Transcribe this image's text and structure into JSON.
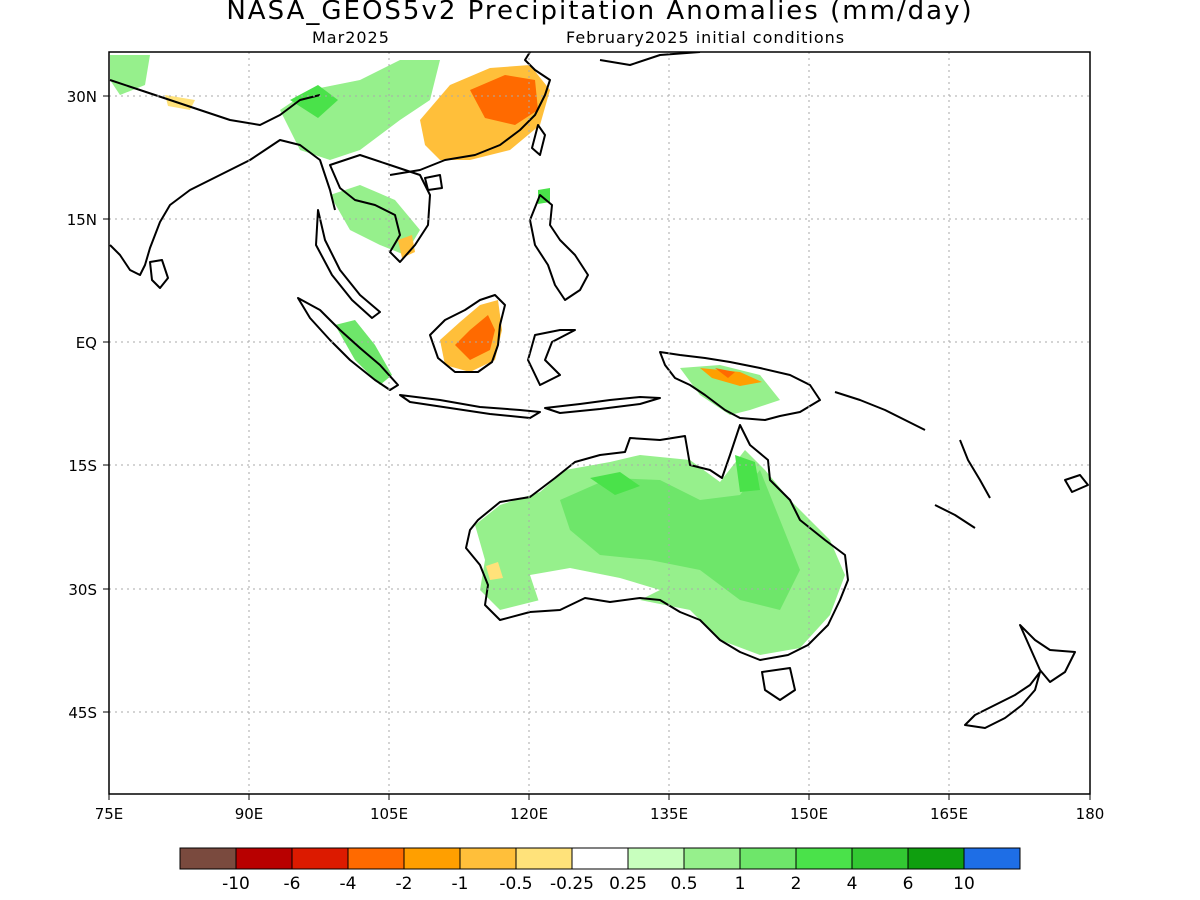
{
  "title": "NASA_GEOS5v2 Precipitation Anomalies (mm/day)",
  "subtitle_left": "Mar2025",
  "subtitle_right": "February2025 initial conditions",
  "lat_ticks": [
    "30N",
    "15N",
    "EQ",
    "15S",
    "30S",
    "45S"
  ],
  "lon_ticks": [
    "75E",
    "90E",
    "105E",
    "120E",
    "135E",
    "150E",
    "165E",
    "180"
  ],
  "colorbar": {
    "colors": [
      "#7a4a3e",
      "#b80000",
      "#dc1a00",
      "#ff6a00",
      "#ff9f00",
      "#ffbf3a",
      "#ffe27a",
      "#ffffff",
      "#c8ffbe",
      "#96f08c",
      "#6ee66a",
      "#4ae24a",
      "#32c832",
      "#0f9f0f",
      "#1e6ee6"
    ],
    "labels": [
      "-10",
      "-6",
      "-4",
      "-2",
      "-1",
      "-0.5",
      "-0.25",
      "0.25",
      "0.5",
      "1",
      "2",
      "4",
      "6",
      "10"
    ]
  }
}
